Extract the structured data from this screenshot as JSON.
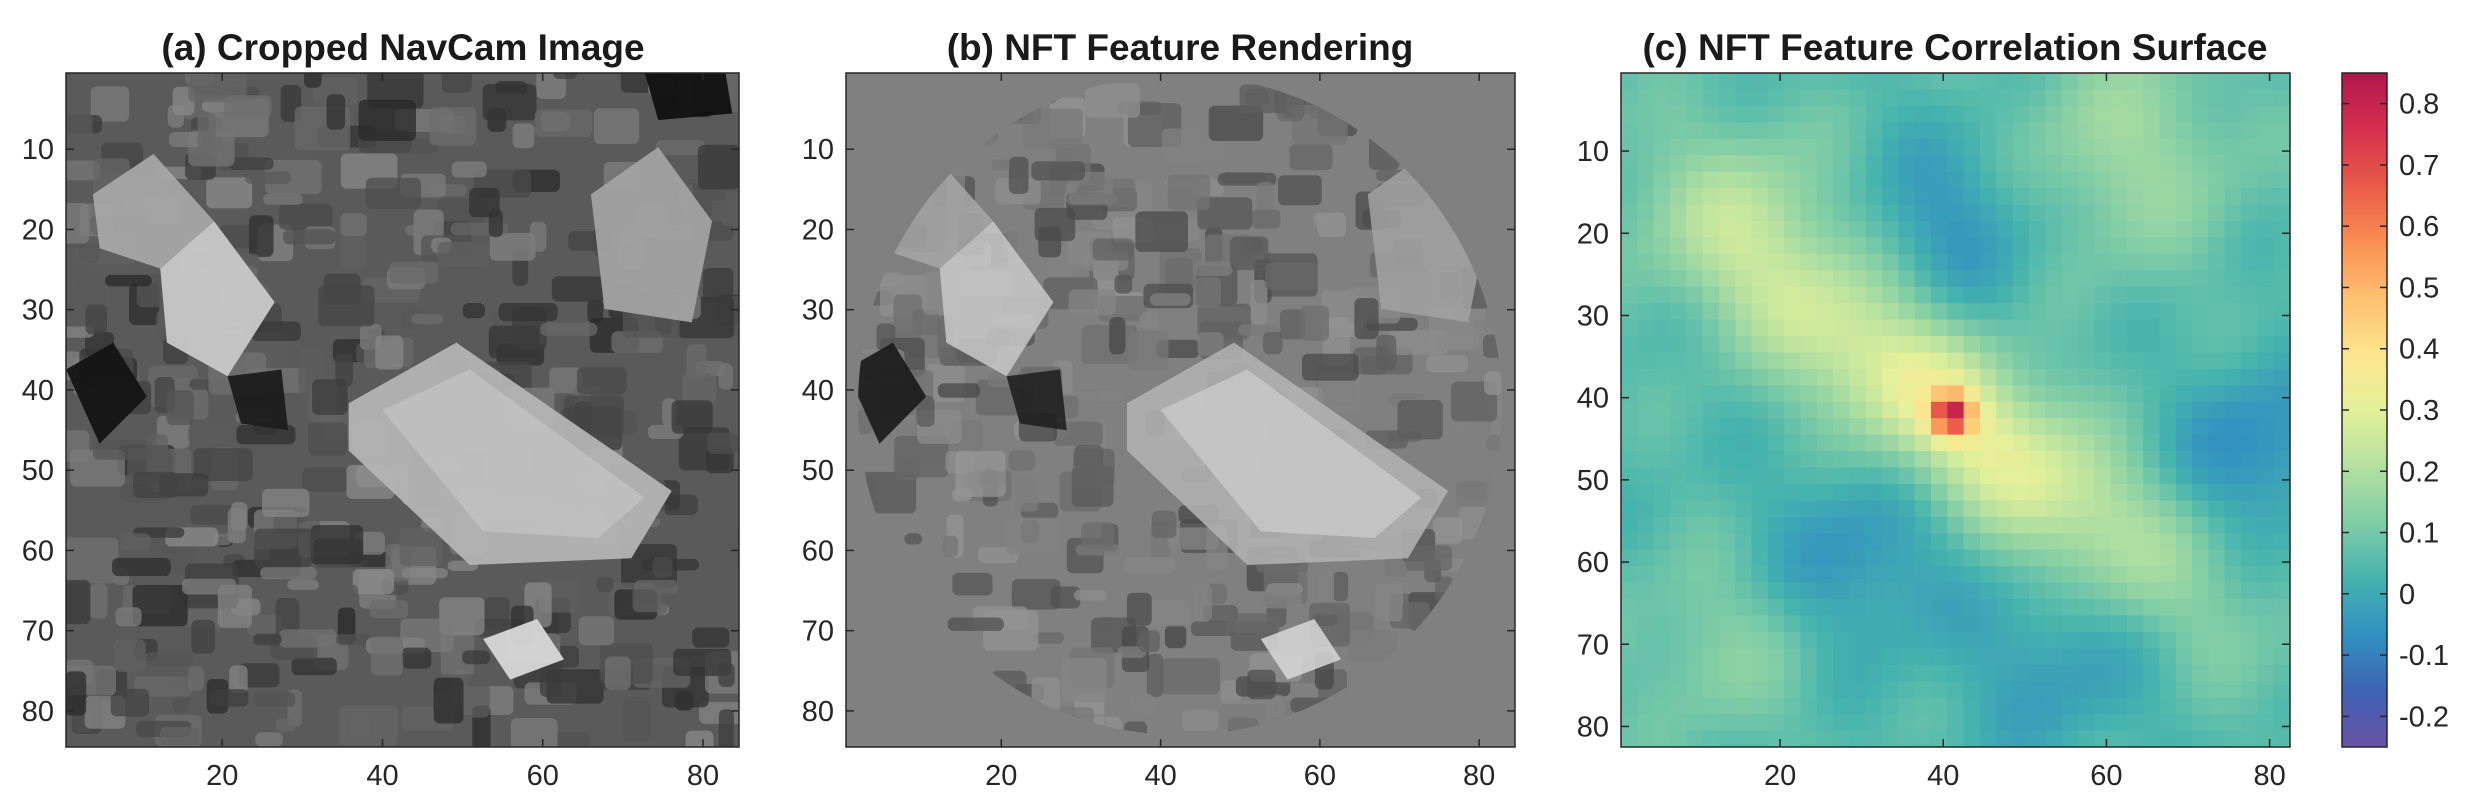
{
  "chart_data": [
    {
      "type": "heatmap",
      "title": "(a) Cropped NavCam Image",
      "colormap": "grayscale",
      "x_ticks": [
        "20",
        "40",
        "60",
        "80"
      ],
      "y_ticks": [
        "10",
        "20",
        "30",
        "40",
        "50",
        "60",
        "70",
        "80"
      ],
      "xlim": [
        1,
        84
      ],
      "ylim": [
        1,
        84
      ],
      "grid": false
    },
    {
      "type": "heatmap",
      "title": "(b) NFT Feature Rendering",
      "colormap": "grayscale",
      "x_ticks": [
        "20",
        "40",
        "60",
        "80"
      ],
      "y_ticks": [
        "10",
        "20",
        "30",
        "40",
        "50",
        "60",
        "70",
        "80"
      ],
      "xlim": [
        1,
        84
      ],
      "ylim": [
        1,
        84
      ],
      "grid": false
    },
    {
      "type": "heatmap",
      "title": "(c) NFT Feature Correlation Surface",
      "colormap": "spectral (blue-green-yellow-red)",
      "x_ticks": [
        "20",
        "40",
        "60",
        "80"
      ],
      "y_ticks": [
        "10",
        "20",
        "30",
        "40",
        "50",
        "60",
        "70",
        "80"
      ],
      "xlim": [
        1,
        82
      ],
      "ylim": [
        1,
        82
      ],
      "peak": {
        "x": 41,
        "y": 42,
        "value": 0.83
      },
      "color_range": [
        -0.25,
        0.85
      ],
      "colorbar_ticks": [
        "0.8",
        "0.7",
        "0.6",
        "0.5",
        "0.4",
        "0.3",
        "0.2",
        "0.1",
        "0",
        "-0.1",
        "-0.2"
      ],
      "grid": false
    }
  ]
}
